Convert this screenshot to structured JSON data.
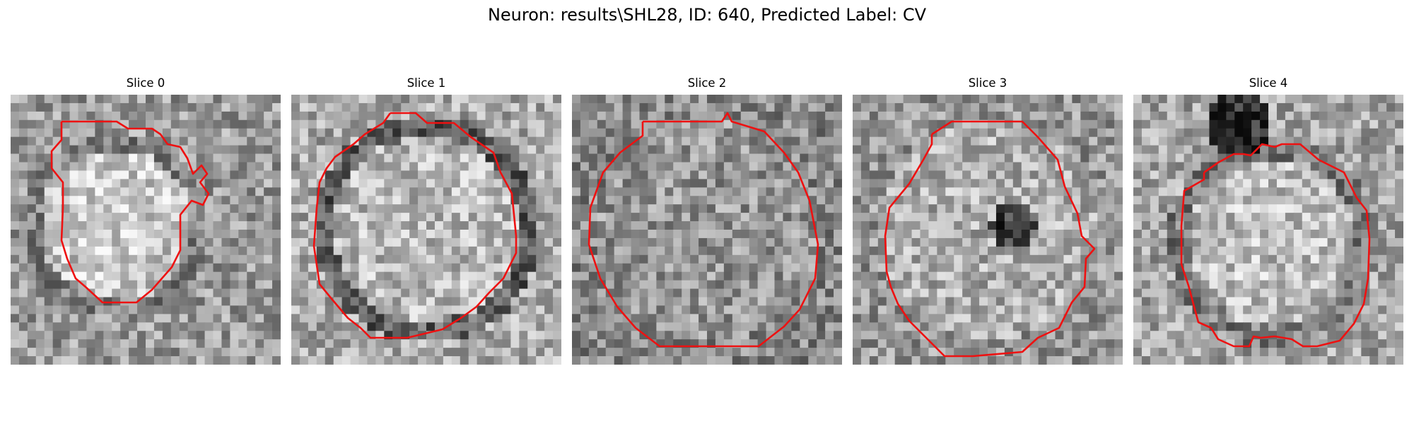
{
  "figure": {
    "title": "Neuron: results\\SHL28, ID: 640, Predicted Label: CV",
    "contour_color": "#ee1111",
    "panels": [
      {
        "title": "Slice 0",
        "seed": 11,
        "profile": "blob"
      },
      {
        "title": "Slice 1",
        "seed": 23,
        "profile": "ring"
      },
      {
        "title": "Slice 2",
        "seed": 37,
        "profile": "flat"
      },
      {
        "title": "Slice 3",
        "seed": 41,
        "profile": "spot"
      },
      {
        "title": "Slice 4",
        "seed": 53,
        "profile": "topdark"
      }
    ]
  }
}
